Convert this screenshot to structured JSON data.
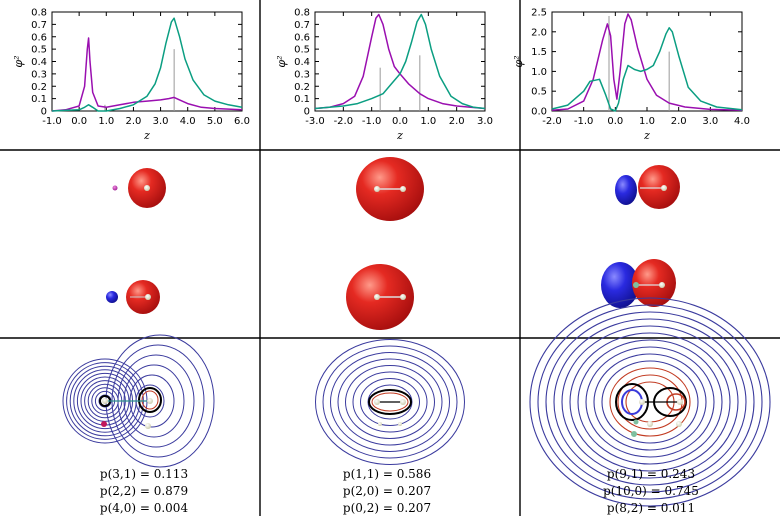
{
  "colors": {
    "series_green": "#0b9e82",
    "series_purple": "#9a0fb0",
    "isosurface_red": "#dd1a1a",
    "isosurface_blue": "#2222cc",
    "contour_blue": "#3b3b9e",
    "contour_red": "#c23b22"
  },
  "chart_data": [
    {
      "type": "line",
      "ylabel": "φ²",
      "xlabel": "z",
      "xlim": [
        -1.0,
        6.0
      ],
      "ylim": [
        0,
        0.8
      ],
      "xticks": [
        "-1.0",
        "0.0",
        "1.0",
        "2.0",
        "3.0",
        "4.0",
        "5.0",
        "6.0"
      ],
      "yticks": [
        "0",
        "0.1",
        "0.2",
        "0.3",
        "0.4",
        "0.5",
        "0.6",
        "0.7",
        "0.8"
      ],
      "series": [
        {
          "color": "purple",
          "x": [
            -1.0,
            -0.5,
            0.0,
            0.2,
            0.3,
            0.35,
            0.4,
            0.5,
            0.7,
            1.0,
            1.5,
            2.0,
            2.5,
            3.0,
            3.3,
            3.5,
            3.7,
            4.0,
            4.5,
            5.0,
            6.0
          ],
          "y": [
            0.0,
            0.01,
            0.04,
            0.2,
            0.5,
            0.59,
            0.4,
            0.15,
            0.04,
            0.03,
            0.05,
            0.07,
            0.08,
            0.09,
            0.1,
            0.11,
            0.09,
            0.06,
            0.03,
            0.02,
            0.01
          ]
        },
        {
          "color": "green",
          "x": [
            -1.0,
            0.0,
            0.2,
            0.35,
            0.5,
            0.7,
            1.0,
            1.5,
            2.0,
            2.5,
            2.8,
            3.0,
            3.2,
            3.4,
            3.5,
            3.7,
            3.9,
            4.2,
            4.6,
            5.0,
            5.5,
            6.0
          ],
          "y": [
            0.0,
            0.01,
            0.03,
            0.05,
            0.03,
            0.0,
            0.0,
            0.02,
            0.05,
            0.12,
            0.22,
            0.35,
            0.55,
            0.72,
            0.75,
            0.6,
            0.42,
            0.25,
            0.13,
            0.08,
            0.05,
            0.03
          ]
        }
      ],
      "vlines": [
        {
          "x": 0.95,
          "y": 0.05
        },
        {
          "x": 3.5,
          "y": 0.5
        }
      ]
    },
    {
      "type": "line",
      "ylabel": "φ²",
      "xlabel": "z",
      "xlim": [
        -3.0,
        3.0
      ],
      "ylim": [
        0,
        0.8
      ],
      "xticks": [
        "-3.0",
        "-2.0",
        "-1.0",
        "0.0",
        "1.0",
        "2.0",
        "3.0"
      ],
      "yticks": [
        "0",
        "0.1",
        "0.2",
        "0.3",
        "0.4",
        "0.5",
        "0.6",
        "0.7",
        "0.8"
      ],
      "series": [
        {
          "color": "purple",
          "x": [
            -3.0,
            -2.5,
            -2.0,
            -1.6,
            -1.3,
            -1.0,
            -0.85,
            -0.75,
            -0.6,
            -0.4,
            -0.2,
            0.0,
            0.3,
            0.7,
            1.0,
            1.5,
            2.0,
            2.5,
            3.0
          ],
          "y": [
            0.02,
            0.03,
            0.06,
            0.12,
            0.28,
            0.6,
            0.75,
            0.78,
            0.7,
            0.5,
            0.36,
            0.3,
            0.22,
            0.14,
            0.1,
            0.06,
            0.04,
            0.03,
            0.02
          ]
        },
        {
          "color": "green",
          "x": [
            -3.0,
            -2.5,
            -2.0,
            -1.5,
            -1.0,
            -0.6,
            -0.3,
            0.0,
            0.2,
            0.4,
            0.6,
            0.75,
            0.9,
            1.1,
            1.4,
            1.8,
            2.2,
            2.6,
            3.0
          ],
          "y": [
            0.02,
            0.03,
            0.04,
            0.06,
            0.1,
            0.14,
            0.22,
            0.3,
            0.4,
            0.55,
            0.72,
            0.78,
            0.7,
            0.5,
            0.28,
            0.12,
            0.06,
            0.03,
            0.02
          ]
        }
      ],
      "vlines": [
        {
          "x": -0.7,
          "y": 0.35
        },
        {
          "x": 0.7,
          "y": 0.45
        }
      ]
    },
    {
      "type": "line",
      "ylabel": "φ²",
      "xlabel": "z",
      "xlim": [
        -2.0,
        4.0
      ],
      "ylim": [
        0,
        2.5
      ],
      "xticks": [
        "-2.0",
        "-1.0",
        "0.0",
        "1.0",
        "2.0",
        "3.0",
        "4.0"
      ],
      "yticks": [
        "0.0",
        "0.5",
        "1.0",
        "1.5",
        "2.0",
        "2.5"
      ],
      "series": [
        {
          "color": "purple",
          "x": [
            -2.0,
            -1.5,
            -1.0,
            -0.7,
            -0.4,
            -0.25,
            -0.15,
            -0.05,
            0.05,
            0.15,
            0.3,
            0.4,
            0.5,
            0.7,
            1.0,
            1.3,
            1.7,
            2.2,
            3.0,
            4.0
          ],
          "y": [
            0.02,
            0.05,
            0.25,
            0.8,
            1.8,
            2.2,
            1.9,
            0.8,
            0.3,
            1.0,
            2.2,
            2.45,
            2.3,
            1.6,
            0.8,
            0.4,
            0.2,
            0.1,
            0.04,
            0.02
          ]
        },
        {
          "color": "green",
          "x": [
            -2.0,
            -1.5,
            -1.0,
            -0.8,
            -0.5,
            -0.3,
            -0.15,
            0.0,
            0.1,
            0.25,
            0.4,
            0.6,
            0.8,
            1.0,
            1.2,
            1.4,
            1.6,
            1.7,
            1.8,
            2.0,
            2.3,
            2.7,
            3.2,
            4.0
          ],
          "y": [
            0.05,
            0.15,
            0.5,
            0.75,
            0.8,
            0.4,
            0.05,
            0.0,
            0.2,
            0.8,
            1.15,
            1.05,
            1.0,
            1.05,
            1.15,
            1.5,
            1.95,
            2.1,
            2.0,
            1.4,
            0.6,
            0.25,
            0.1,
            0.03
          ]
        }
      ],
      "vlines": [
        {
          "x": 1.7,
          "y": 1.5
        },
        {
          "x": -0.2,
          "y": 2.4
        }
      ]
    }
  ],
  "captions": [
    [
      "p(3,1) = 0.113",
      "p(2,2) = 0.879",
      "p(4,0) = 0.004"
    ],
    [
      "p(1,1) = 0.586",
      "p(2,0) = 0.207",
      "p(0,2) = 0.207"
    ],
    [
      "p(9,1) = 0.243",
      "p(10,0) = 0.745",
      "p(8,2) = 0.011"
    ]
  ]
}
